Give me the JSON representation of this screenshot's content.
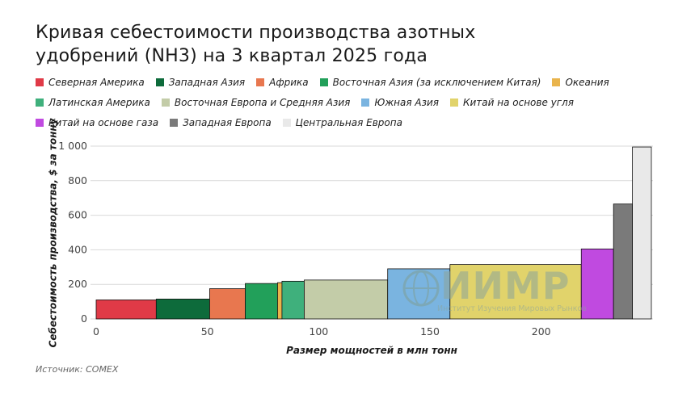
{
  "title": {
    "line1": "Кривая себестоимости производства азотных",
    "line2": "удобрений (NH3) на 3 квартал 2025 года"
  },
  "watermark": {
    "text": "ИИМР",
    "subtext": "Институт Изучения Мировых Рынков"
  },
  "source": "Источник: COMEX",
  "chart_data": {
    "type": "bar",
    "subtype": "variable-width cost curve",
    "title": "Кривая себестоимости производства азотных удобрений (NH3) на 3 квартал 2025 года",
    "xlabel": "Размер мощностей в млн тонн",
    "ylabel": "Себестоимость производства, $ за тонну",
    "xlim": [
      0,
      250
    ],
    "ylim": [
      0,
      1000
    ],
    "x_ticks": [
      0,
      50,
      100,
      150,
      200
    ],
    "y_ticks": [
      0,
      200,
      400,
      600,
      800,
      1000
    ],
    "y_tick_labels": [
      "0",
      "200",
      "400",
      "600",
      "800",
      "1 000"
    ],
    "grid": {
      "horizontal": true,
      "vertical": false
    },
    "legend_position": "top",
    "series": [
      {
        "name": "Северная Америка",
        "x_start": 0,
        "x_end": 27,
        "value": 110,
        "color": "#e03a47"
      },
      {
        "name": "Западная Азия",
        "x_start": 27,
        "x_end": 51,
        "value": 115,
        "color": "#0d6b3b"
      },
      {
        "name": "Африка",
        "x_start": 51,
        "x_end": 67,
        "value": 175,
        "color": "#e8774f"
      },
      {
        "name": "Восточная Азия (за исключением Китая)",
        "x_start": 67,
        "x_end": 81.5,
        "value": 205,
        "color": "#22a05a"
      },
      {
        "name": "Океания",
        "x_start": 81.5,
        "x_end": 83.5,
        "value": 210,
        "color": "#e9b44c"
      },
      {
        "name": "Латинская Америка",
        "x_start": 83.5,
        "x_end": 93.5,
        "value": 218,
        "color": "#3fb07c"
      },
      {
        "name": "Восточная Европа и Средняя Азия",
        "x_start": 93.5,
        "x_end": 131,
        "value": 225,
        "color": "#c3cca8"
      },
      {
        "name": "Южная Азия",
        "x_start": 131,
        "x_end": 159,
        "value": 290,
        "color": "#7ab4e0"
      },
      {
        "name": "Китай на основе угля",
        "x_start": 159,
        "x_end": 218,
        "value": 315,
        "color": "#e1d36b"
      },
      {
        "name": "Китай на основе газа",
        "x_start": 218,
        "x_end": 232.5,
        "value": 405,
        "color": "#c04ae0"
      },
      {
        "name": "Западная Европа",
        "x_start": 232.5,
        "x_end": 241,
        "value": 665,
        "color": "#7a7a7a"
      },
      {
        "name": "Центральная Европа",
        "x_start": 241,
        "x_end": 249.5,
        "value": 995,
        "color": "#e9e9e9"
      }
    ]
  }
}
